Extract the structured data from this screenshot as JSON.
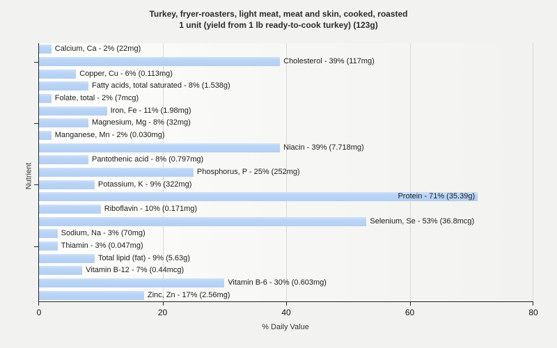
{
  "title": {
    "line1": "Turkey, fryer-roasters, light meat, meat and skin, cooked, roasted",
    "line2": "1 unit (yield from 1 lb ready-to-cook turkey) (123g)"
  },
  "chart_data": {
    "type": "bar",
    "orientation": "horizontal",
    "title": "Turkey, fryer-roasters, light meat, meat and skin, cooked, roasted",
    "subtitle": "1 unit (yield from 1 lb ready-to-cook turkey) (123g)",
    "xlabel": "% Daily Value",
    "ylabel": "Nutrient",
    "xlim": [
      0,
      80
    ],
    "xticks": [
      0,
      20,
      40,
      60,
      80
    ],
    "grid": "vertical gridlines at xticks",
    "legend": "none",
    "ytick_row_indices": [
      1,
      6,
      11,
      16
    ],
    "bars": [
      {
        "nutrient": "Calcium, Ca",
        "percent": 2,
        "amount": "22mg",
        "label": "Calcium, Ca - 2% (22mg)"
      },
      {
        "nutrient": "Cholesterol",
        "percent": 39,
        "amount": "117mg",
        "label": "Cholesterol - 39% (117mg)"
      },
      {
        "nutrient": "Copper, Cu",
        "percent": 6,
        "amount": "0.113mg",
        "label": "Copper, Cu - 6% (0.113mg)"
      },
      {
        "nutrient": "Fatty acids, total saturated",
        "percent": 8,
        "amount": "1.538g",
        "label": "Fatty acids, total saturated - 8% (1.538g)"
      },
      {
        "nutrient": "Folate, total",
        "percent": 2,
        "amount": "7mcg",
        "label": "Folate, total - 2% (7mcg)"
      },
      {
        "nutrient": "Iron, Fe",
        "percent": 11,
        "amount": "1.98mg",
        "label": "Iron, Fe - 11% (1.98mg)"
      },
      {
        "nutrient": "Magnesium, Mg",
        "percent": 8,
        "amount": "32mg",
        "label": "Magnesium, Mg - 8% (32mg)"
      },
      {
        "nutrient": "Manganese, Mn",
        "percent": 2,
        "amount": "0.030mg",
        "label": "Manganese, Mn - 2% (0.030mg)"
      },
      {
        "nutrient": "Niacin",
        "percent": 39,
        "amount": "7.718mg",
        "label": "Niacin - 39% (7.718mg)"
      },
      {
        "nutrient": "Pantothenic acid",
        "percent": 8,
        "amount": "0.797mg",
        "label": "Pantothenic acid - 8% (0.797mg)"
      },
      {
        "nutrient": "Phosphorus, P",
        "percent": 25,
        "amount": "252mg",
        "label": "Phosphorus, P - 25% (252mg)"
      },
      {
        "nutrient": "Potassium, K",
        "percent": 9,
        "amount": "322mg",
        "label": "Potassium, K - 9% (322mg)"
      },
      {
        "nutrient": "Protein",
        "percent": 71,
        "amount": "35.39g",
        "label": "Protein - 71% (35.39g)"
      },
      {
        "nutrient": "Riboflavin",
        "percent": 10,
        "amount": "0.171mg",
        "label": "Riboflavin - 10% (0.171mg)"
      },
      {
        "nutrient": "Selenium, Se",
        "percent": 53,
        "amount": "36.8mcg",
        "label": "Selenium, Se - 53% (36.8mcg)"
      },
      {
        "nutrient": "Sodium, Na",
        "percent": 3,
        "amount": "70mg",
        "label": "Sodium, Na - 3% (70mg)"
      },
      {
        "nutrient": "Thiamin",
        "percent": 3,
        "amount": "0.047mg",
        "label": "Thiamin - 3% (0.047mg)"
      },
      {
        "nutrient": "Total lipid (fat)",
        "percent": 9,
        "amount": "5.63g",
        "label": "Total lipid (fat) - 9% (5.63g)"
      },
      {
        "nutrient": "Vitamin B-12",
        "percent": 7,
        "amount": "0.44mcg",
        "label": "Vitamin B-12 - 7% (0.44mcg)"
      },
      {
        "nutrient": "Vitamin B-6",
        "percent": 30,
        "amount": "0.603mg",
        "label": "Vitamin B-6 - 30% (0.603mg)"
      },
      {
        "nutrient": "Zinc, Zn",
        "percent": 17,
        "amount": "2.56mg",
        "label": "Zinc, Zn - 17% (2.56mg)"
      }
    ],
    "colors": {
      "page_bg": "#f2f2f1",
      "plot_bg_left": "#fdfdfc",
      "plot_bg_right": "#f2f2f0",
      "bar_fill": "#b9d3f4",
      "bar_fill_highlight": "#cfe1f9",
      "gridline": "#d9d9d6",
      "axis": "#222222",
      "text": "#1c1c1c"
    }
  }
}
